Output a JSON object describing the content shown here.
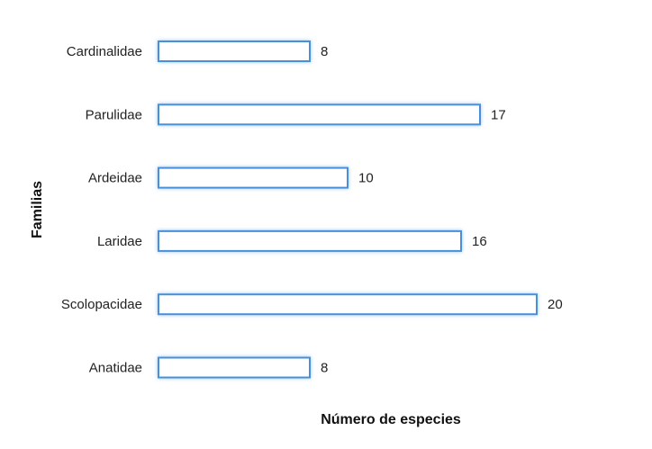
{
  "chart_data": {
    "type": "bar",
    "orientation": "horizontal",
    "categories": [
      "Cardinalidae",
      "Parulidae",
      "Ardeidae",
      "Laridae",
      "Scolopacidae",
      "Anatidae"
    ],
    "values": [
      8,
      17,
      10,
      16,
      20,
      8
    ],
    "xlabel": "Número de especies",
    "ylabel": "Familias",
    "xlim": [
      0,
      20
    ],
    "grid": false,
    "legend": "none",
    "colors": {
      "bar_fill": "#ffffff",
      "bar_stroke": "#4a90d9",
      "bar_glow": "#9cc8f0",
      "text": "#222222"
    }
  }
}
